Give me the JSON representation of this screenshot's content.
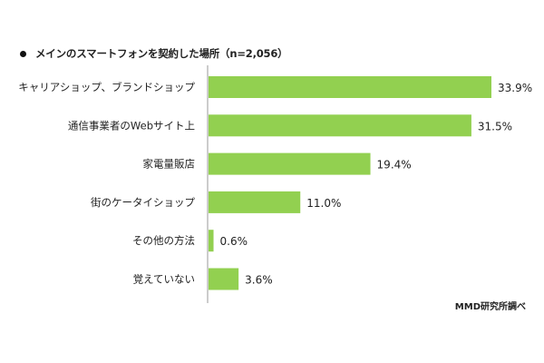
{
  "chart_data": {
    "type": "bar",
    "orientation": "horizontal",
    "title": "メインのスマートフォンを契約した場所（n=2,056）",
    "categories": [
      "キャリアショップ、ブランドショップ",
      "通信事業者のWebサイト上",
      "家電量販店",
      "街のケータイショップ",
      "その他の方法",
      "覚えていない"
    ],
    "values": [
      33.9,
      31.5,
      19.4,
      11.0,
      0.6,
      3.6
    ],
    "value_labels": [
      "33.9%",
      "31.5%",
      "19.4%",
      "11.0%",
      "0.6%",
      "3.6%"
    ],
    "xlim": [
      0,
      40
    ],
    "bar_color": "#92d050",
    "axis_color": "#999999",
    "grid": false,
    "legend": "none"
  },
  "source": "MMD研究所調べ"
}
